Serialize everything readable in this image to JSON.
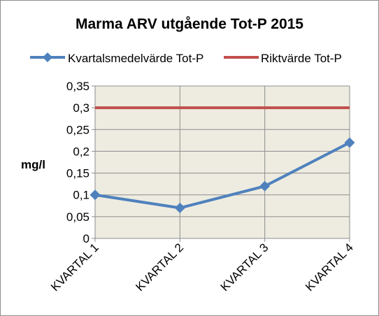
{
  "chart_data": {
    "type": "line",
    "title": "Marma ARV utgående Tot-P 2015",
    "ylabel": "mg/l",
    "xlabel": "",
    "categories": [
      "KVARTAL 1",
      "KVARTAL 2",
      "KVARTAL 3",
      "KVARTAL 4"
    ],
    "ylim": [
      0,
      0.35
    ],
    "yticks": [
      0,
      0.05,
      0.1,
      0.15,
      0.2,
      0.25,
      0.3,
      0.35
    ],
    "ytick_labels": [
      "0",
      "0,05",
      "0,1",
      "0,15",
      "0,2",
      "0,25",
      "0,3",
      "0,35"
    ],
    "grid": true,
    "legend_position": "top",
    "series": [
      {
        "name": "Kvartalsmedelvärde Tot-P",
        "values": [
          0.1,
          0.07,
          0.12,
          0.22
        ],
        "color": "#4f81bd",
        "marker": "diamond"
      },
      {
        "name": "Riktvärde Tot-P",
        "values": [
          0.3,
          0.3,
          0.3,
          0.3
        ],
        "color": "#c0504d",
        "marker": "none"
      }
    ],
    "plot_background": "#eeece1"
  }
}
